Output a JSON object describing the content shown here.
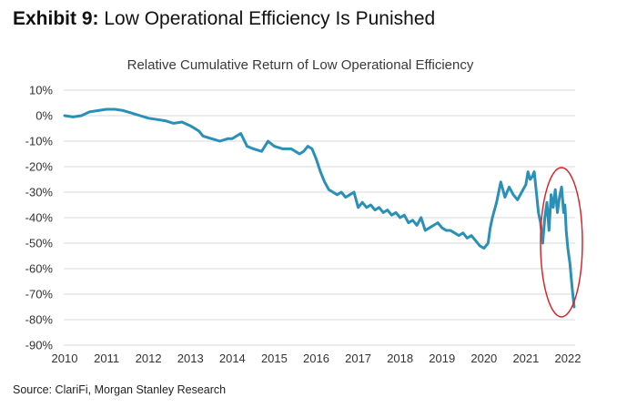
{
  "header": {
    "exhibit_label": "Exhibit 9:",
    "exhibit_title": "Low Operational Efficiency Is Punished"
  },
  "source": "Source: ClariFi, Morgan Stanley Research",
  "chart_data": {
    "type": "line",
    "title": "Relative Cumulative Return of Low Operational Efficiency",
    "xlabel": "",
    "ylabel": "",
    "xlim": [
      2010,
      2022.3
    ],
    "ylim": [
      -90,
      10
    ],
    "x_ticks": [
      "2010",
      "2011",
      "2012",
      "2013",
      "2014",
      "2015",
      "2016",
      "2017",
      "2018",
      "2019",
      "2020",
      "2021",
      "2022"
    ],
    "y_ticks": [
      "10%",
      "0%",
      "-10%",
      "-20%",
      "-30%",
      "-40%",
      "-50%",
      "-60%",
      "-70%",
      "-80%",
      "-90%"
    ],
    "grid": "horizontal",
    "line_color": "#2a90b8",
    "highlight_color": "#d9262b",
    "series": [
      {
        "x": [
          2010.0,
          2010.2,
          2010.4,
          2010.6,
          2010.8,
          2011.0,
          2011.2,
          2011.4,
          2011.6,
          2011.8,
          2012.0,
          2012.2,
          2012.4,
          2012.6,
          2012.8,
          2013.0,
          2013.2,
          2013.3,
          2013.5,
          2013.7,
          2013.9,
          2014.0,
          2014.1,
          2014.2,
          2014.35,
          2014.5,
          2014.7,
          2014.85,
          2015.0,
          2015.2,
          2015.4,
          2015.5,
          2015.6,
          2015.7,
          2015.8,
          2015.9,
          2016.0,
          2016.1,
          2016.2,
          2016.3,
          2016.4,
          2016.5,
          2016.6,
          2016.7,
          2016.8,
          2016.9,
          2017.0,
          2017.1,
          2017.2,
          2017.3,
          2017.4,
          2017.5,
          2017.6,
          2017.7,
          2017.8,
          2017.9,
          2018.0,
          2018.1,
          2018.2,
          2018.3,
          2018.4,
          2018.5,
          2018.6,
          2018.7,
          2018.8,
          2018.9,
          2019.0,
          2019.1,
          2019.2,
          2019.3,
          2019.4,
          2019.5,
          2019.6,
          2019.7,
          2019.8,
          2019.9,
          2020.0,
          2020.1,
          2020.15,
          2020.2,
          2020.3,
          2020.4,
          2020.5,
          2020.6,
          2020.7,
          2020.8,
          2020.9,
          2021.0,
          2021.05,
          2021.1,
          2021.15,
          2021.2,
          2021.25,
          2021.3,
          2021.35,
          2021.4,
          2021.45,
          2021.5,
          2021.55,
          2021.6,
          2021.65,
          2021.7,
          2021.75,
          2021.8,
          2021.85,
          2021.9,
          2021.93,
          2021.96,
          2022.0,
          2022.05,
          2022.1,
          2022.15
        ],
        "y": [
          0,
          -0.5,
          0,
          1.5,
          2,
          2.5,
          2.5,
          2,
          1,
          0,
          -1,
          -1.5,
          -2,
          -3,
          -2.5,
          -4,
          -6,
          -8,
          -9,
          -10,
          -9,
          -9,
          -8,
          -7,
          -12,
          -13,
          -14,
          -10,
          -12,
          -13,
          -13,
          -14,
          -15,
          -14,
          -12,
          -13,
          -17,
          -22,
          -26,
          -29,
          -30,
          -31,
          -30,
          -32,
          -31,
          -30,
          -36,
          -34,
          -36,
          -35,
          -37,
          -36,
          -38,
          -37,
          -39,
          -38,
          -40,
          -39,
          -42,
          -41,
          -43,
          -40,
          -45,
          -44,
          -43,
          -42,
          -44,
          -45,
          -45,
          -46,
          -47,
          -46,
          -48,
          -47,
          -49,
          -51,
          -52,
          -50,
          -44,
          -40,
          -34,
          -26,
          -32,
          -28,
          -31,
          -33,
          -30,
          -27,
          -22,
          -25,
          -24,
          -22,
          -30,
          -38,
          -42,
          -50,
          -40,
          -34,
          -45,
          -31,
          -36,
          -29,
          -38,
          -32,
          -28,
          -38,
          -35,
          -45,
          -52,
          -58,
          -67,
          -75
        ]
      }
    ]
  }
}
